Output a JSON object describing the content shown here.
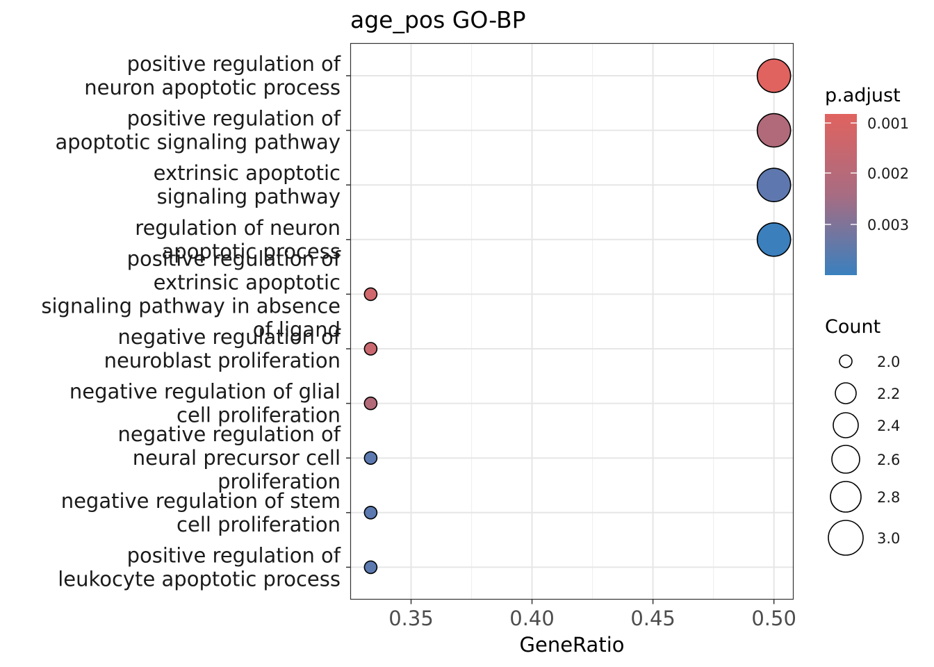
{
  "chart_data": {
    "type": "scatter",
    "title": "age_pos GO-BP",
    "xlabel": "GeneRatio",
    "ylabel": "",
    "xlim": [
      0.325,
      0.508
    ],
    "xticks": [
      0.35,
      0.4,
      0.45,
      0.5
    ],
    "xtick_labels": [
      "0.35",
      "0.40",
      "0.45",
      "0.50"
    ],
    "grid": true,
    "categories": [
      "positive regulation of\nneuron apoptotic process",
      "positive regulation of\napoptotic signaling pathway",
      "extrinsic apoptotic\nsignaling pathway",
      "regulation of neuron\napoptotic process",
      "positive regulation of\nextrinsic apoptotic\nsignaling pathway in absence\nof ligand",
      "negative regulation of\nneuroblast proliferation",
      "negative regulation of glial\ncell proliferation",
      "negative regulation of\nneural precursor cell\nproliferation",
      "negative regulation of stem\ncell proliferation",
      "positive regulation of\nleukocyte apoptotic process"
    ],
    "points": [
      {
        "x": 0.5,
        "count": 3,
        "p_adjust": 0.0009,
        "color": "#E0635F"
      },
      {
        "x": 0.5,
        "count": 3,
        "p_adjust": 0.0021,
        "color": "#B16A7A"
      },
      {
        "x": 0.5,
        "count": 3,
        "p_adjust": 0.0033,
        "color": "#5E78AF"
      },
      {
        "x": 0.5,
        "count": 3,
        "p_adjust": 0.0039,
        "color": "#3B7FBD"
      },
      {
        "x": 0.3333,
        "count": 2,
        "p_adjust": 0.0014,
        "color": "#D0686D"
      },
      {
        "x": 0.3333,
        "count": 2,
        "p_adjust": 0.0015,
        "color": "#CA6870"
      },
      {
        "x": 0.3333,
        "count": 2,
        "p_adjust": 0.002,
        "color": "#B36A78"
      },
      {
        "x": 0.3333,
        "count": 2,
        "p_adjust": 0.0034,
        "color": "#5C79B0"
      },
      {
        "x": 0.3333,
        "count": 2,
        "p_adjust": 0.0034,
        "color": "#5C79B0"
      },
      {
        "x": 0.3333,
        "count": 2,
        "p_adjust": 0.0034,
        "color": "#5C79B0"
      }
    ],
    "legend": {
      "placement": "right",
      "color_title": "p.adjust",
      "color_breaks": [
        "0.001",
        "0.002",
        "0.003"
      ],
      "color_low": "#E0635F",
      "color_high": "#3A80BE",
      "size_title": "Count",
      "size_breaks": [
        "2.0",
        "2.2",
        "2.4",
        "2.6",
        "2.8",
        "3.0"
      ]
    }
  }
}
